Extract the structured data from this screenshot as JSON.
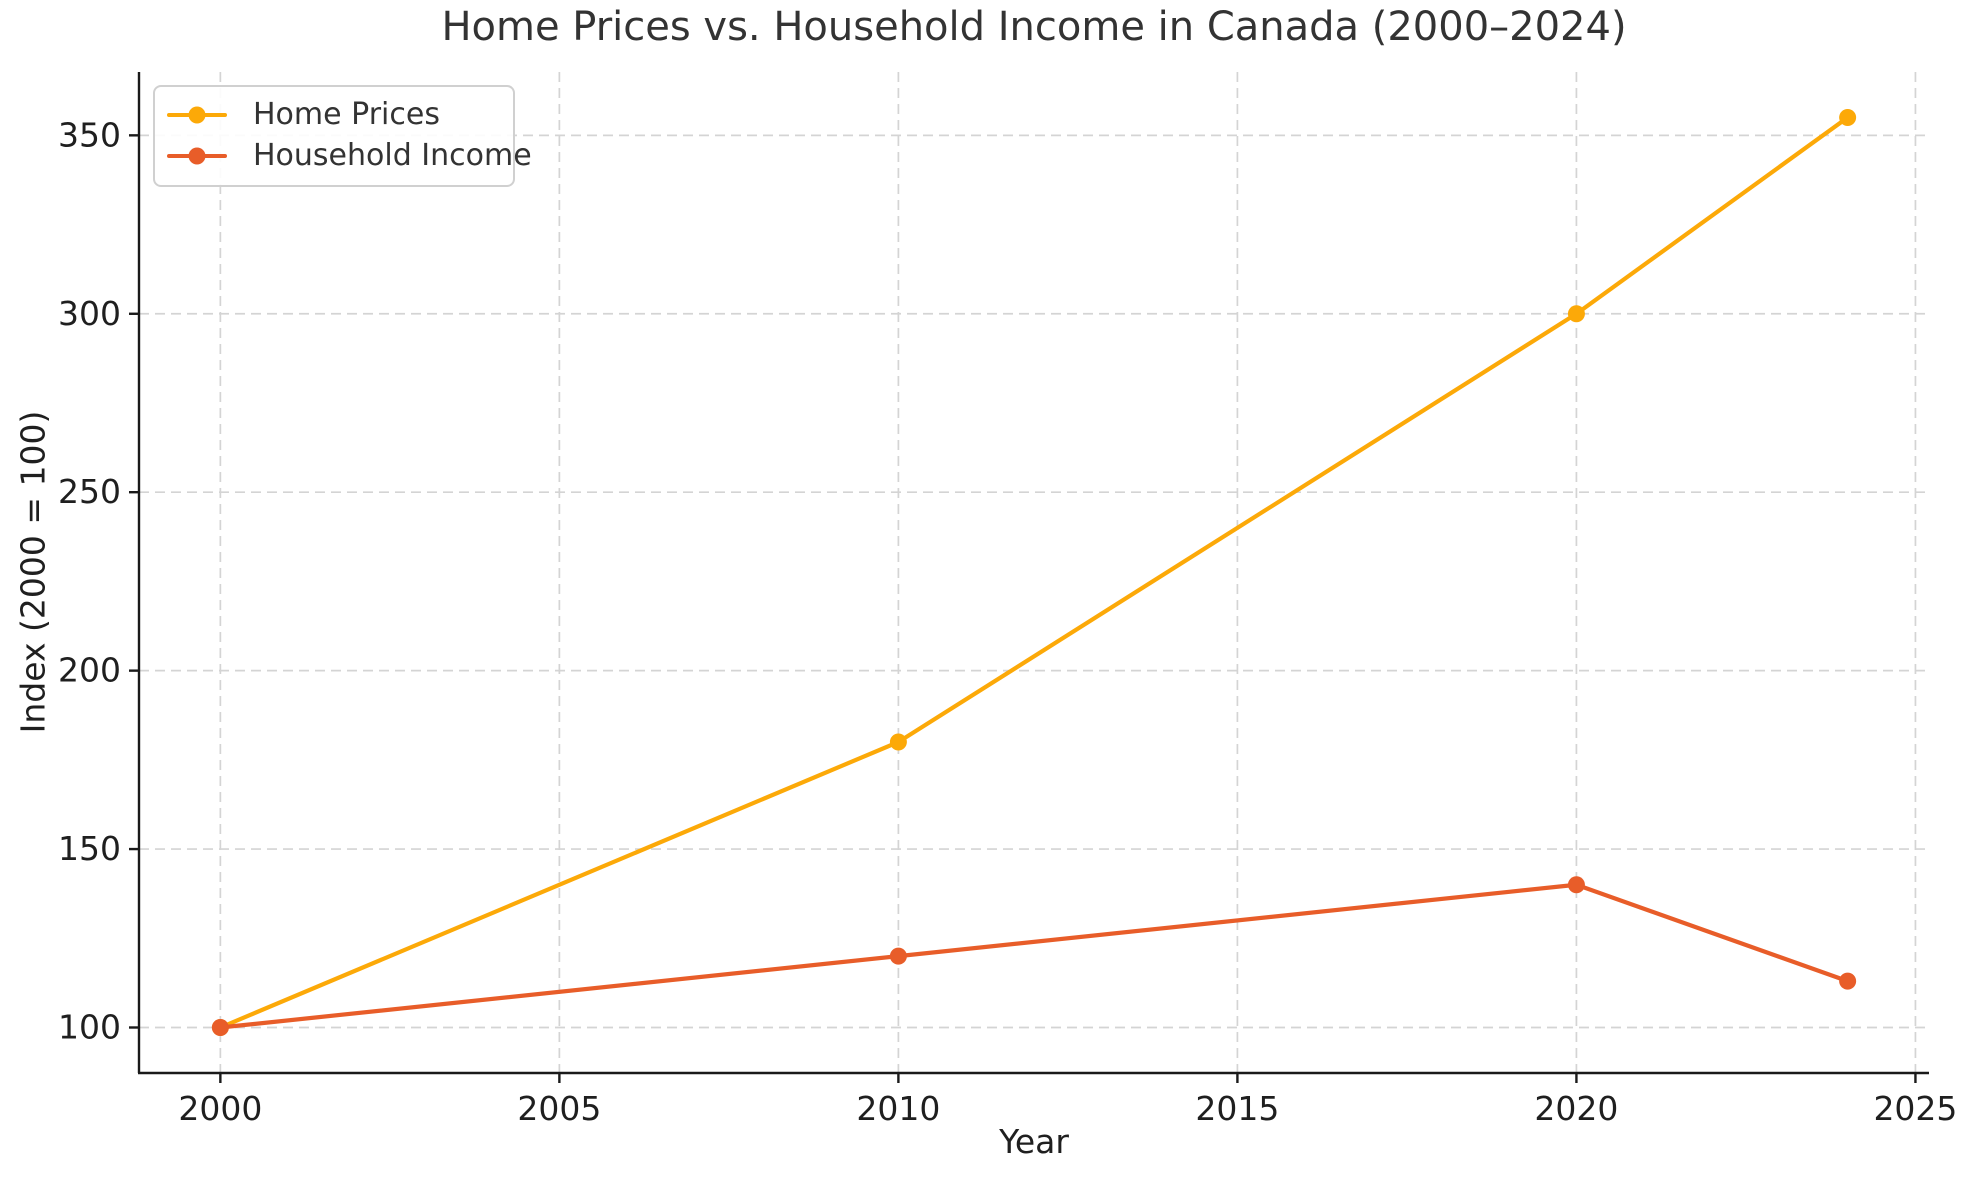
{
  "chart_data": {
    "type": "line",
    "title": "Home Prices vs. Household Income in Canada (2000–2024)",
    "xlabel": "Year",
    "ylabel": "Index (2000 = 100)",
    "x": [
      2000,
      2010,
      2020,
      2024
    ],
    "series": [
      {
        "name": "Home Prices",
        "color": "#FCA908",
        "values": [
          100,
          180,
          300,
          355
        ]
      },
      {
        "name": "Household Income",
        "color": "#E85D29",
        "values": [
          100,
          120,
          140,
          113
        ]
      }
    ],
    "xticks": [
      2000,
      2005,
      2010,
      2015,
      2020,
      2025
    ],
    "yticks": [
      100,
      150,
      200,
      250,
      300,
      350
    ],
    "xlim": [
      1998.8,
      2025.2
    ],
    "ylim": [
      87.25,
      367.75
    ],
    "grid": true,
    "grid_color": "#d4d4d4",
    "axis_color": "#1a1a1a",
    "tick_label_color": "#1f1f1f",
    "legend_position": "top-left",
    "background_color": "#ffffff"
  }
}
